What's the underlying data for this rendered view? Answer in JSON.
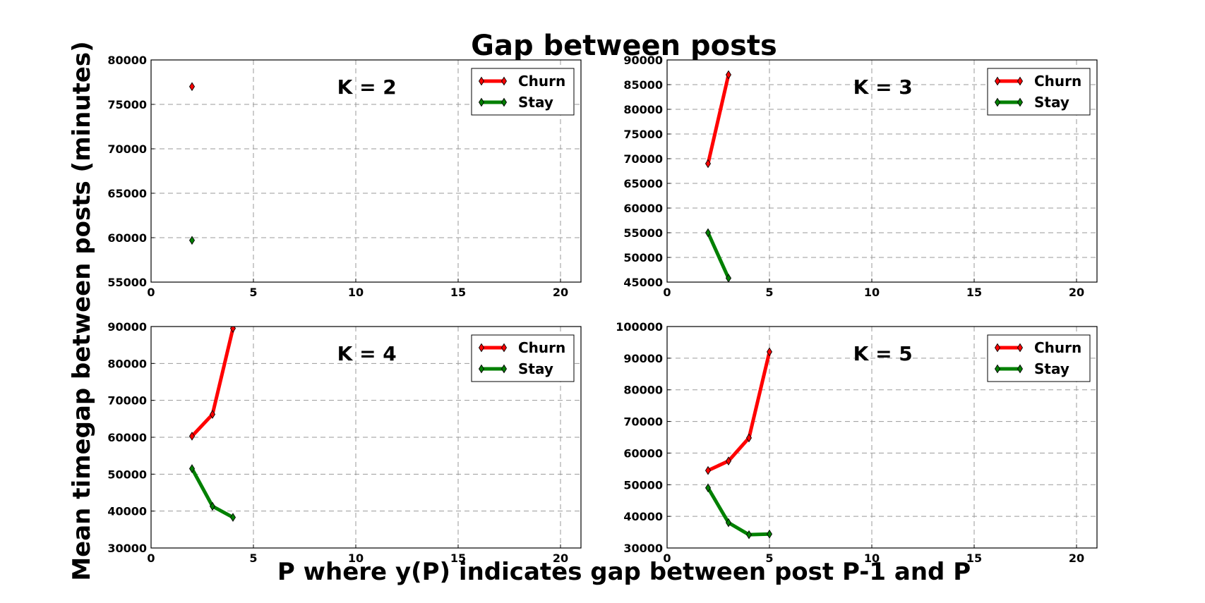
{
  "title": "Gap between posts",
  "xlabel": "P where y(P) indicates gap between post P-1 and P",
  "ylabel": "Mean timegap between posts (minutes)",
  "colors": {
    "churn": "#ff0000",
    "stay": "#008000"
  },
  "chart_data": [
    {
      "type": "line",
      "panel_label": "K = 2",
      "xlim": [
        0,
        21
      ],
      "ylim": [
        55000,
        80000
      ],
      "xticks": [
        "0",
        "5",
        "10",
        "15",
        "20"
      ],
      "yticks": [
        "55000",
        "60000",
        "65000",
        "70000",
        "75000",
        "80000"
      ],
      "grid": true,
      "legend_position": "top-right",
      "series": [
        {
          "name": "Churn",
          "x": [
            2
          ],
          "values": [
            77000
          ]
        },
        {
          "name": "Stay",
          "x": [
            2
          ],
          "values": [
            59700
          ]
        }
      ]
    },
    {
      "type": "line",
      "panel_label": "K = 3",
      "xlim": [
        0,
        21
      ],
      "ylim": [
        45000,
        90000
      ],
      "xticks": [
        "0",
        "5",
        "10",
        "15",
        "20"
      ],
      "yticks": [
        "45000",
        "50000",
        "55000",
        "60000",
        "65000",
        "70000",
        "75000",
        "80000",
        "85000",
        "90000"
      ],
      "grid": true,
      "legend_position": "top-right",
      "series": [
        {
          "name": "Churn",
          "x": [
            2,
            3
          ],
          "values": [
            69000,
            87000
          ]
        },
        {
          "name": "Stay",
          "x": [
            2,
            3
          ],
          "values": [
            55000,
            45800
          ]
        }
      ]
    },
    {
      "type": "line",
      "panel_label": "K = 4",
      "xlim": [
        0,
        21
      ],
      "ylim": [
        30000,
        90000
      ],
      "xticks": [
        "0",
        "5",
        "10",
        "15",
        "20"
      ],
      "yticks": [
        "30000",
        "40000",
        "50000",
        "60000",
        "70000",
        "80000",
        "90000"
      ],
      "grid": true,
      "legend_position": "top-right",
      "series": [
        {
          "name": "Churn",
          "x": [
            2,
            3,
            4
          ],
          "values": [
            60300,
            66200,
            89500
          ]
        },
        {
          "name": "Stay",
          "x": [
            2,
            3,
            4
          ],
          "values": [
            51500,
            41300,
            38300
          ]
        }
      ]
    },
    {
      "type": "line",
      "panel_label": "K = 5",
      "xlim": [
        0,
        21
      ],
      "ylim": [
        30000,
        100000
      ],
      "xticks": [
        "0",
        "5",
        "10",
        "15",
        "20"
      ],
      "yticks": [
        "30000",
        "40000",
        "50000",
        "60000",
        "70000",
        "80000",
        "90000",
        "100000"
      ],
      "grid": true,
      "legend_position": "top-right",
      "series": [
        {
          "name": "Churn",
          "x": [
            2,
            3,
            4,
            5
          ],
          "values": [
            54500,
            57500,
            64800,
            92000
          ]
        },
        {
          "name": "Stay",
          "x": [
            2,
            3,
            4,
            5
          ],
          "values": [
            49000,
            38000,
            34200,
            34400
          ]
        }
      ]
    }
  ]
}
